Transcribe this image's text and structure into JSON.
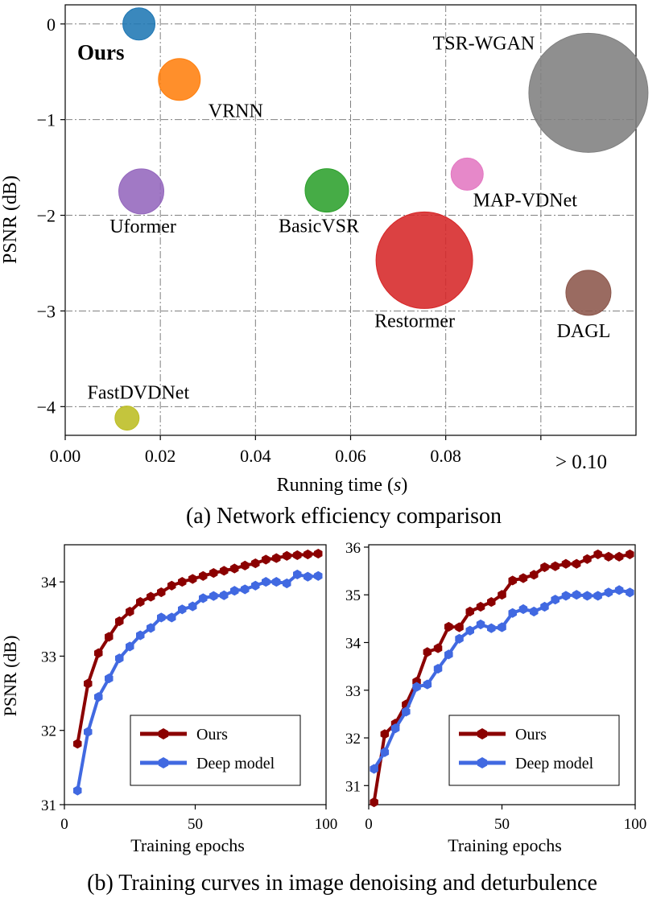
{
  "chart_data": [
    {
      "type": "scatter",
      "name": "efficiency",
      "xlabel_pre": "Running time (",
      "xlabel_var": "s",
      "xlabel_post": ")",
      "ylabel": "PSNR (dB)",
      "xlim": [
        0.0,
        0.12
      ],
      "ylim": [
        -4.3,
        0.2
      ],
      "xticks": [
        0.0,
        0.02,
        0.04,
        0.06,
        0.08,
        0.1
      ],
      "xtick_labels": [
        "0.00",
        "0.02",
        "0.04",
        "0.06",
        "0.08",
        ""
      ],
      "yticks": [
        0,
        -1,
        -2,
        -3,
        -4
      ],
      "ytick_labels": [
        "0",
        "−1",
        "−2",
        "−3",
        "−4"
      ],
      "extra_tick_label": "> 0.10",
      "highlight_label": "Ours",
      "caption": "(a) Network efficiency comparison",
      "points": [
        {
          "name": "Ours",
          "label": "",
          "x": 0.0155,
          "y": 0.0,
          "size": 1.0,
          "color": "#1f77b4"
        },
        {
          "name": "VRNN",
          "label": "VRNN",
          "x": 0.024,
          "y": -0.58,
          "size": 1.3,
          "color": "#ff7f0e"
        },
        {
          "name": "Uformer",
          "label": "Uformer",
          "x": 0.016,
          "y": -1.75,
          "size": 1.4,
          "color": "#9467bd"
        },
        {
          "name": "BasicVSR",
          "label": "BasicVSR",
          "x": 0.055,
          "y": -1.74,
          "size": 1.35,
          "color": "#2ca02c"
        },
        {
          "name": "MAP-VDNet",
          "label": "MAP-VDNet",
          "x": 0.0845,
          "y": -1.57,
          "size": 1.0,
          "color": "#e377c2"
        },
        {
          "name": "Restormer",
          "label": "Restormer",
          "x": 0.0755,
          "y": -2.47,
          "size": 3.0,
          "color": "#d62728"
        },
        {
          "name": "TSR-WGAN",
          "label": "TSR-WGAN",
          "x": 0.11,
          "y": -0.72,
          "size": 3.7,
          "color": "#7f7f7f"
        },
        {
          "name": "DAGL",
          "label": "DAGL",
          "x": 0.11,
          "y": -2.81,
          "size": 1.4,
          "color": "#8c564b"
        },
        {
          "name": "FastDVDNet",
          "label": "FastDVDNet",
          "x": 0.013,
          "y": -4.12,
          "size": 0.75,
          "color": "#bcbd22"
        }
      ]
    },
    {
      "type": "line",
      "name": "denoising",
      "xlabel": "Training epochs",
      "ylabel": "PSNR (dB)",
      "xlim": [
        0,
        100
      ],
      "ylim": [
        31.0,
        34.5
      ],
      "xticks": [
        0,
        50,
        100
      ],
      "yticks": [
        31,
        32,
        33,
        34
      ],
      "x": [
        5,
        9,
        13,
        17,
        21,
        25,
        29,
        33,
        37,
        41,
        45,
        49,
        53,
        57,
        61,
        65,
        69,
        73,
        77,
        81,
        85,
        89,
        93,
        97
      ],
      "series": [
        {
          "name": "Ours",
          "color": "#8b0000",
          "values": [
            31.82,
            32.63,
            33.04,
            33.26,
            33.47,
            33.6,
            33.73,
            33.8,
            33.86,
            33.95,
            34.0,
            34.04,
            34.08,
            34.12,
            34.15,
            34.18,
            34.22,
            34.25,
            34.3,
            34.32,
            34.35,
            34.36,
            34.37,
            34.38
          ]
        },
        {
          "name": "Deep model",
          "color": "#4169e1",
          "values": [
            31.19,
            31.98,
            32.45,
            32.7,
            32.97,
            33.13,
            33.28,
            33.38,
            33.52,
            33.52,
            33.63,
            33.67,
            33.78,
            33.81,
            33.82,
            33.88,
            33.9,
            33.95,
            34.0,
            34.0,
            33.98,
            34.1,
            34.07,
            34.08
          ]
        }
      ]
    },
    {
      "type": "line",
      "name": "deturbulence",
      "xlabel": "Training epochs",
      "ylabel": "",
      "xlim": [
        0,
        100
      ],
      "ylim": [
        30.6,
        36.05
      ],
      "xticks": [
        0,
        50,
        100
      ],
      "yticks": [
        31,
        32,
        33,
        34,
        35,
        36
      ],
      "x": [
        2,
        6,
        10,
        14,
        18,
        22,
        26,
        30,
        34,
        38,
        42,
        46,
        50,
        54,
        58,
        62,
        66,
        70,
        74,
        78,
        82,
        86,
        90,
        94,
        98
      ],
      "series": [
        {
          "name": "Ours",
          "color": "#8b0000",
          "values": [
            30.65,
            32.08,
            32.3,
            32.7,
            33.18,
            33.8,
            33.88,
            34.33,
            34.32,
            34.65,
            34.75,
            34.85,
            35.0,
            35.3,
            35.35,
            35.42,
            35.58,
            35.6,
            35.65,
            35.65,
            35.75,
            35.85,
            35.8,
            35.8,
            35.85
          ]
        },
        {
          "name": "Deep model",
          "color": "#4169e1",
          "values": [
            31.35,
            31.7,
            32.2,
            32.55,
            33.07,
            33.12,
            33.45,
            33.75,
            34.08,
            34.25,
            34.38,
            34.3,
            34.32,
            34.62,
            34.7,
            34.65,
            34.75,
            34.9,
            34.98,
            35.0,
            34.98,
            34.98,
            35.05,
            35.1,
            35.05
          ]
        }
      ]
    }
  ],
  "captions": {
    "top": "(a) Network efficiency comparison",
    "bottom": "(b) Training curves in image denoising and deturbulence"
  }
}
